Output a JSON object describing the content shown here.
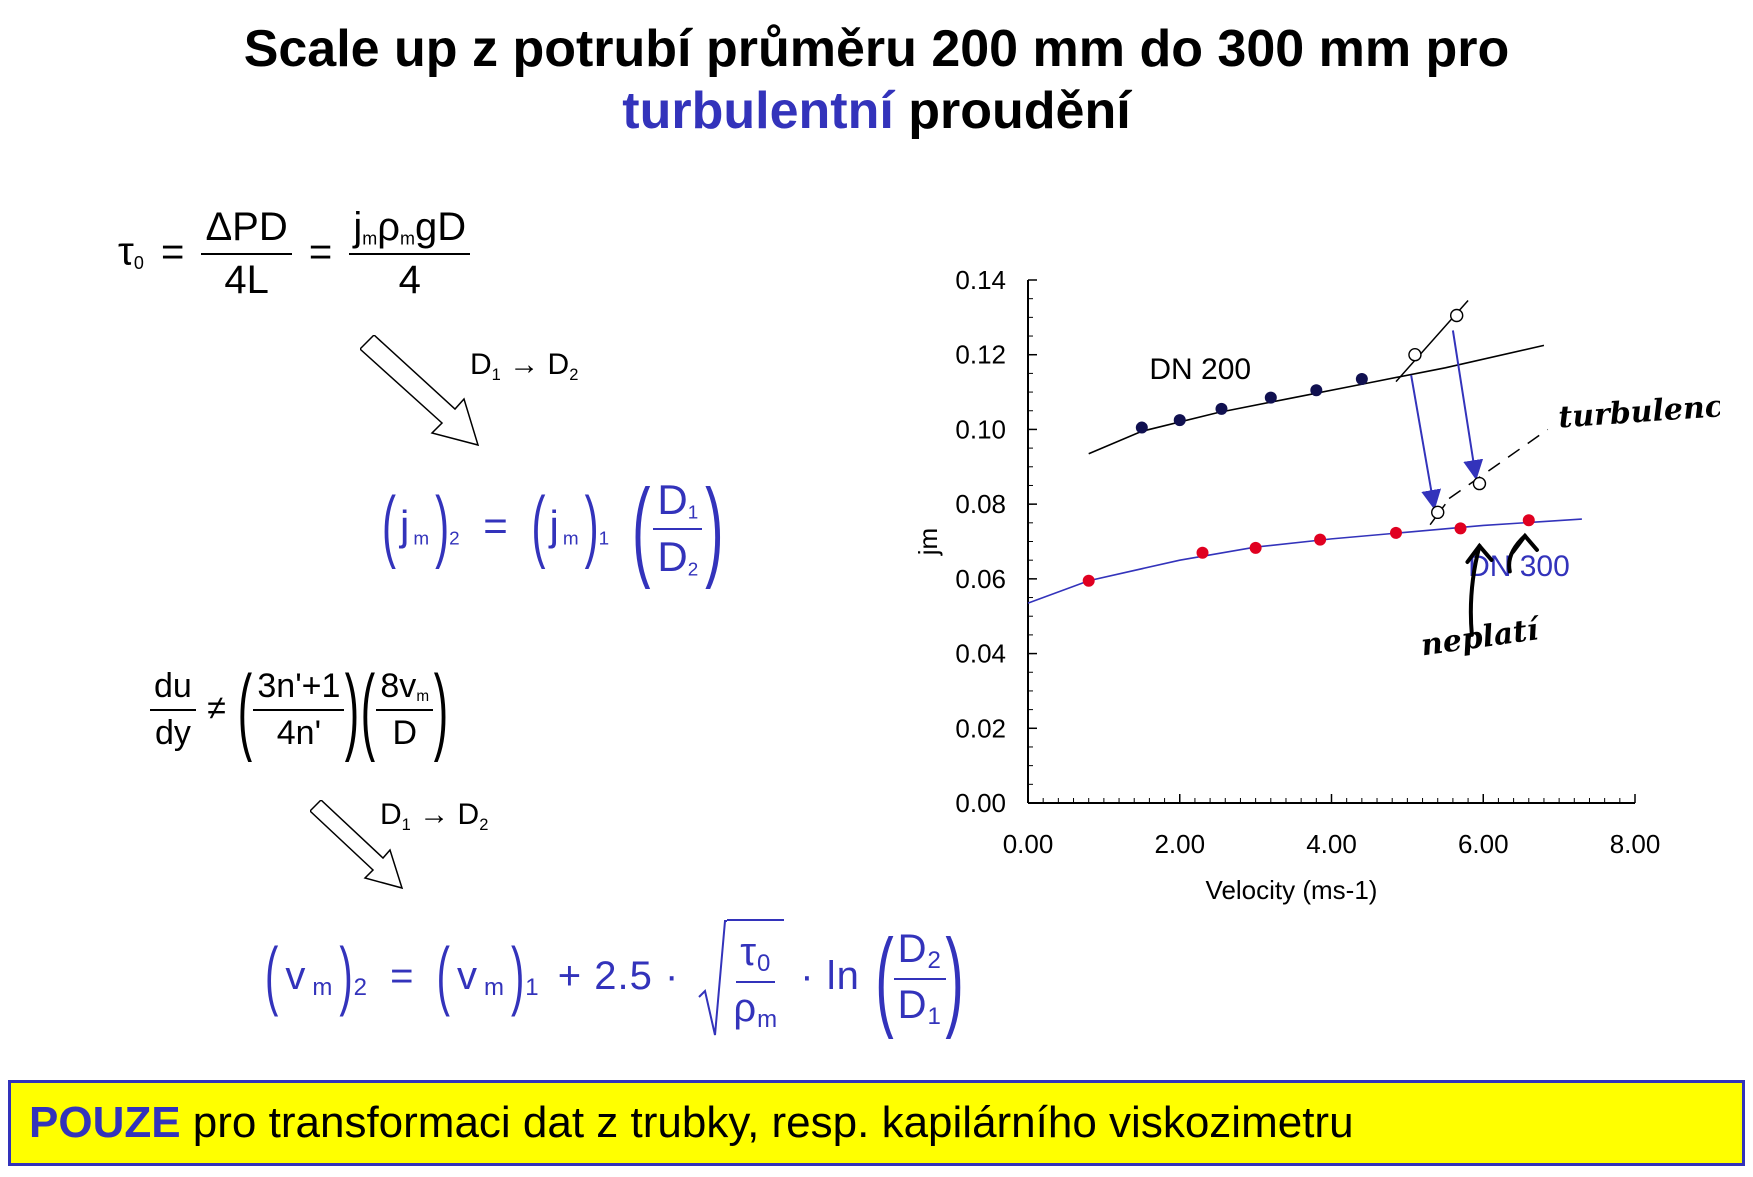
{
  "title": {
    "line1": "Scale up z potrubí průměru 200 mm do 300 mm pro",
    "accent": "turbulentní",
    "rest": " proudění"
  },
  "eq1": {
    "tau": "τ",
    "tau_sub": "0",
    "eq": "=",
    "num1": "ΔPD",
    "den1": "4L",
    "eq2": "=",
    "num2_j": "j",
    "num2_jsub": "m",
    "num2_rho": "ρ",
    "num2_rhosub": "m",
    "num2_rest": "gD",
    "den2": "4"
  },
  "arrow1_label": {
    "d1": "D",
    "s1": "1",
    "arrow": " → ",
    "d2": "D",
    "s2": "2"
  },
  "eq2": {
    "lp": "(",
    "j": "j",
    "jsub": "m",
    "rp": ")",
    "outsub": "2",
    "eq": "=",
    "lp2": "(",
    "j2": "j",
    "jsub2": "m",
    "rp2": ")",
    "outsub2": "1",
    "fnum": "D",
    "fnumsub": "1",
    "fden": "D",
    "fdensub": "2"
  },
  "eq3": {
    "num": "du",
    "den": "dy",
    "neq": "≠",
    "f1num": "3n'+1",
    "f1den": "4n'",
    "f2num": "8v",
    "f2numsub": "m",
    "f2den": "D"
  },
  "arrow2_label": {
    "d1": "D",
    "s1": "1",
    "arrow": " → ",
    "d2": "D",
    "s2": "2"
  },
  "eq4": {
    "v": "v",
    "vsub": "m",
    "outsub": "2",
    "eq": "=",
    "v2": "v",
    "vsub2": "m",
    "outsub2": "1",
    "plus": "+ 2.5 ·",
    "tau": "τ",
    "tausub": "0",
    "rho": "ρ",
    "rhosub": "m",
    "ln": "· ln",
    "fnum": "D",
    "fnumsub": "2",
    "fden": "D",
    "fdensub": "1"
  },
  "footer": {
    "strong": "POUZE",
    "rest": " pro transformaci dat z trubky, resp. kapilárního viskozimetru"
  },
  "chart_data": {
    "type": "scatter",
    "xlabel": "Velocity (ms-1)",
    "ylabel": "jm",
    "xlim": [
      0,
      8
    ],
    "ylim": [
      0,
      0.14
    ],
    "xticks": [
      "0.00",
      "2.00",
      "4.00",
      "6.00",
      "8.00"
    ],
    "yticks": [
      "0.00",
      "0.02",
      "0.04",
      "0.06",
      "0.08",
      "0.10",
      "0.12",
      "0.14"
    ],
    "series": [
      {
        "name": "DN 200",
        "color": "#101050",
        "points": [
          [
            1.5,
            0.1005
          ],
          [
            2.0,
            0.1025
          ],
          [
            2.55,
            0.1055
          ],
          [
            3.2,
            0.1085
          ],
          [
            3.8,
            0.1105
          ],
          [
            4.4,
            0.1135
          ]
        ],
        "curve": [
          [
            0.8,
            0.0935
          ],
          [
            1.5,
            0.0995
          ],
          [
            2.5,
            0.1045
          ],
          [
            3.5,
            0.1085
          ],
          [
            4.5,
            0.1125
          ],
          [
            5.5,
            0.1165
          ],
          [
            6.8,
            0.1225
          ]
        ]
      },
      {
        "name": "DN 300",
        "color": "#e00020",
        "points": [
          [
            0.8,
            0.0595
          ],
          [
            2.3,
            0.067
          ],
          [
            3.0,
            0.0683
          ],
          [
            3.85,
            0.0705
          ],
          [
            4.85,
            0.0723
          ],
          [
            5.7,
            0.0735
          ],
          [
            6.6,
            0.0757
          ]
        ],
        "curve": [
          [
            0.0,
            0.0535
          ],
          [
            0.8,
            0.0595
          ],
          [
            2.0,
            0.065
          ],
          [
            3.0,
            0.0685
          ],
          [
            4.0,
            0.0707
          ],
          [
            5.0,
            0.0725
          ],
          [
            6.0,
            0.0743
          ],
          [
            7.3,
            0.076
          ]
        ]
      }
    ],
    "open_points": [
      [
        5.1,
        0.12
      ],
      [
        5.65,
        0.1305
      ],
      [
        5.4,
        0.0778
      ],
      [
        5.95,
        0.0855
      ]
    ],
    "transition_lines": [
      {
        "from": [
          4.85,
          0.1128
        ],
        "to": [
          5.8,
          0.1345
        ]
      },
      {
        "from": [
          5.3,
          0.0745
        ],
        "to": [
          5.5,
          0.08
        ]
      }
    ],
    "dashed_line": {
      "from": [
        5.55,
        0.0815
      ],
      "to": [
        6.85,
        0.1
      ]
    },
    "blue_arrows": [
      {
        "from": [
          5.05,
          0.1145
        ],
        "to": [
          5.35,
          0.0795
        ]
      },
      {
        "from": [
          5.6,
          0.1265
        ],
        "to": [
          5.9,
          0.0875
        ]
      }
    ],
    "annotations": [
      {
        "text": "DN 200",
        "x": 1.6,
        "y": 0.1135,
        "color": "#000000"
      },
      {
        "text": "DN 300",
        "x": 5.8,
        "y": 0.0608,
        "color": "#3333bb"
      }
    ],
    "handwritten": [
      {
        "text": "turbulence",
        "x": 7.0,
        "y": 0.1005
      },
      {
        "text": "neplatí",
        "x": 5.2,
        "y": 0.0395
      }
    ]
  }
}
